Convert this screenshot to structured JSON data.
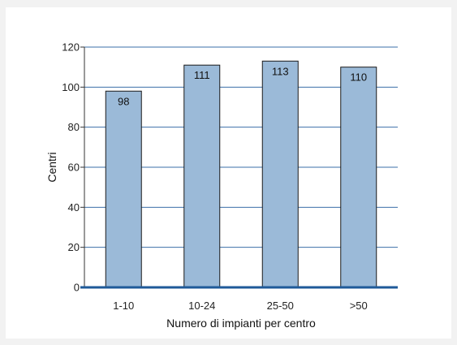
{
  "chart_data": {
    "type": "bar",
    "title": "",
    "xlabel": "Numero di impianti per centro",
    "ylabel": "Centri",
    "categories": [
      "1-10",
      "10-24",
      "25-50",
      ">50"
    ],
    "values": [
      98,
      111,
      113,
      110
    ],
    "data_labels": [
      "98",
      "111",
      "113",
      "110"
    ],
    "ylim": [
      0,
      120
    ],
    "yticks": [
      0,
      20,
      40,
      60,
      80,
      100,
      120
    ],
    "grid": true,
    "legend": "none",
    "colors": {
      "bar_fill": "#9bbad8",
      "bar_stroke": "#1a1a1a",
      "gridline": "#3b6fa8",
      "baseline": "#1f5a99",
      "plot_background": "#ffffff"
    }
  }
}
